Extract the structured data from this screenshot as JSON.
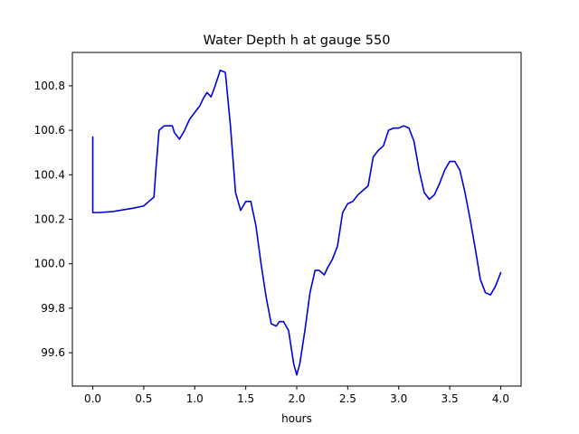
{
  "chart_data": {
    "type": "line",
    "title": "Water Depth h at gauge 550",
    "xlabel": "hours",
    "ylabel": "",
    "xlim": [
      -0.2,
      4.2
    ],
    "ylim": [
      99.45,
      100.95
    ],
    "grid": false,
    "xticks": [
      0.0,
      0.5,
      1.0,
      1.5,
      2.0,
      2.5,
      3.0,
      3.5,
      4.0
    ],
    "xtick_labels": [
      "0.0",
      "0.5",
      "1.0",
      "1.5",
      "2.0",
      "2.5",
      "3.0",
      "3.5",
      "4.0"
    ],
    "yticks": [
      99.6,
      99.8,
      100.0,
      100.2,
      100.4,
      100.6,
      100.8
    ],
    "ytick_labels": [
      "99.6",
      "99.8",
      "100.0",
      "100.2",
      "100.4",
      "100.6",
      "100.8"
    ],
    "series": [
      {
        "color": "#0000dd",
        "x": [
          0.0,
          0.0,
          0.05,
          0.2,
          0.4,
          0.5,
          0.55,
          0.6,
          0.62,
          0.65,
          0.7,
          0.78,
          0.8,
          0.85,
          0.9,
          0.95,
          1.0,
          1.05,
          1.08,
          1.12,
          1.16,
          1.2,
          1.25,
          1.3,
          1.35,
          1.4,
          1.45,
          1.5,
          1.55,
          1.6,
          1.65,
          1.7,
          1.75,
          1.8,
          1.83,
          1.87,
          1.92,
          1.97,
          2.0,
          2.03,
          2.08,
          2.13,
          2.18,
          2.22,
          2.27,
          2.3,
          2.35,
          2.4,
          2.45,
          2.5,
          2.55,
          2.6,
          2.65,
          2.7,
          2.75,
          2.8,
          2.85,
          2.9,
          2.95,
          3.0,
          3.05,
          3.1,
          3.15,
          3.2,
          3.25,
          3.3,
          3.35,
          3.4,
          3.45,
          3.5,
          3.55,
          3.6,
          3.65,
          3.7,
          3.75,
          3.8,
          3.85,
          3.9,
          3.95,
          4.0
        ],
        "y": [
          100.57,
          100.23,
          100.23,
          100.235,
          100.25,
          100.26,
          100.28,
          100.3,
          100.43,
          100.6,
          100.62,
          100.62,
          100.59,
          100.56,
          100.6,
          100.65,
          100.68,
          100.71,
          100.74,
          100.77,
          100.75,
          100.8,
          100.87,
          100.86,
          100.62,
          100.32,
          100.24,
          100.28,
          100.28,
          100.17,
          100.0,
          99.85,
          99.73,
          99.72,
          99.74,
          99.74,
          99.7,
          99.55,
          99.5,
          99.55,
          99.7,
          99.87,
          99.97,
          99.97,
          99.95,
          99.98,
          100.02,
          100.08,
          100.23,
          100.27,
          100.28,
          100.31,
          100.33,
          100.35,
          100.48,
          100.51,
          100.53,
          100.6,
          100.61,
          100.61,
          100.62,
          100.61,
          100.55,
          100.42,
          100.32,
          100.29,
          100.31,
          100.36,
          100.42,
          100.46,
          100.46,
          100.42,
          100.32,
          100.2,
          100.07,
          99.93,
          99.87,
          99.86,
          99.9,
          99.96
        ]
      }
    ]
  }
}
